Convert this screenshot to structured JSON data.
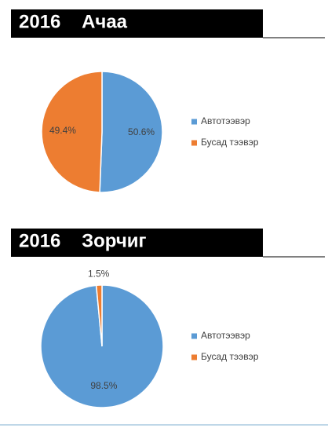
{
  "chart_data": [
    {
      "type": "pie",
      "title": "2016    Ачаа",
      "categories": [
        "Автотээвэр",
        "Бусад тээвэр"
      ],
      "values": [
        50.6,
        49.4
      ],
      "value_labels": [
        "50.6%",
        "49.4%"
      ],
      "colors": [
        "#5b9bd5",
        "#ed7d31"
      ],
      "legend": "right"
    },
    {
      "type": "pie",
      "title": "2016    Зорчиг",
      "categories": [
        "Автотээвэр",
        "Бусад тээвэр"
      ],
      "values": [
        98.5,
        1.5
      ],
      "value_labels": [
        "98.5%",
        "1.5%"
      ],
      "colors": [
        "#5b9bd5",
        "#ed7d31"
      ],
      "legend": "right"
    }
  ]
}
